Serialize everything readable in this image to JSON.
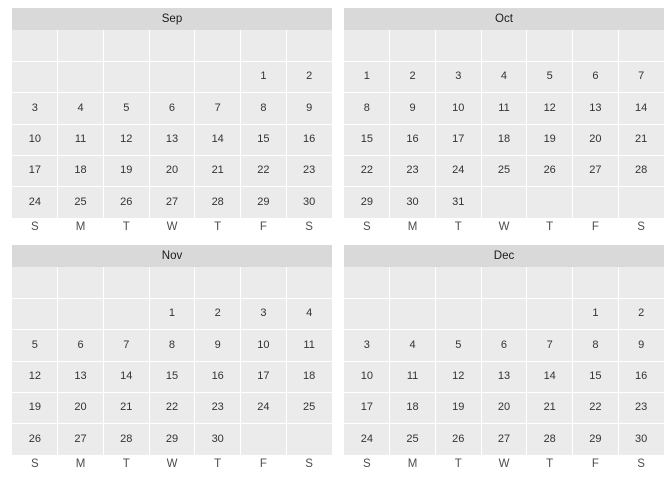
{
  "weekdays": [
    "S",
    "M",
    "T",
    "W",
    "T",
    "F",
    "S"
  ],
  "months": [
    {
      "name": "Sep",
      "rows": [
        [
          "",
          "",
          "",
          "",
          "",
          "",
          ""
        ],
        [
          "",
          "",
          "",
          "",
          "",
          "1",
          "2"
        ],
        [
          "3",
          "4",
          "5",
          "6",
          "7",
          "8",
          "9"
        ],
        [
          "10",
          "11",
          "12",
          "13",
          "14",
          "15",
          "16"
        ],
        [
          "17",
          "18",
          "19",
          "20",
          "21",
          "22",
          "23"
        ],
        [
          "24",
          "25",
          "26",
          "27",
          "28",
          "29",
          "30"
        ]
      ]
    },
    {
      "name": "Oct",
      "rows": [
        [
          "",
          "",
          "",
          "",
          "",
          "",
          ""
        ],
        [
          "1",
          "2",
          "3",
          "4",
          "5",
          "6",
          "7"
        ],
        [
          "8",
          "9",
          "10",
          "11",
          "12",
          "13",
          "14"
        ],
        [
          "15",
          "16",
          "17",
          "18",
          "19",
          "20",
          "21"
        ],
        [
          "22",
          "23",
          "24",
          "25",
          "26",
          "27",
          "28"
        ],
        [
          "29",
          "30",
          "31",
          "",
          "",
          "",
          ""
        ]
      ]
    },
    {
      "name": "Nov",
      "rows": [
        [
          "",
          "",
          "",
          "",
          "",
          "",
          ""
        ],
        [
          "",
          "",
          "",
          "1",
          "2",
          "3",
          "4"
        ],
        [
          "5",
          "6",
          "7",
          "8",
          "9",
          "10",
          "11"
        ],
        [
          "12",
          "13",
          "14",
          "15",
          "16",
          "17",
          "18"
        ],
        [
          "19",
          "20",
          "21",
          "22",
          "23",
          "24",
          "25"
        ],
        [
          "26",
          "27",
          "28",
          "29",
          "30",
          "",
          ""
        ]
      ]
    },
    {
      "name": "Dec",
      "rows": [
        [
          "",
          "",
          "",
          "",
          "",
          "",
          ""
        ],
        [
          "",
          "",
          "",
          "",
          "",
          "1",
          "2"
        ],
        [
          "3",
          "4",
          "5",
          "6",
          "7",
          "8",
          "9"
        ],
        [
          "10",
          "11",
          "12",
          "13",
          "14",
          "15",
          "16"
        ],
        [
          "17",
          "18",
          "19",
          "20",
          "21",
          "22",
          "23"
        ],
        [
          "24",
          "25",
          "26",
          "27",
          "28",
          "29",
          "30"
        ]
      ]
    }
  ],
  "chart_data": {
    "type": "heatmap",
    "title": "",
    "xlabel": "",
    "ylabel": "",
    "facets": [
      "Sep",
      "Oct",
      "Nov",
      "Dec"
    ],
    "x_tick_labels": [
      "S",
      "M",
      "T",
      "W",
      "T",
      "F",
      "S"
    ],
    "grid": true,
    "legend": "none"
  }
}
